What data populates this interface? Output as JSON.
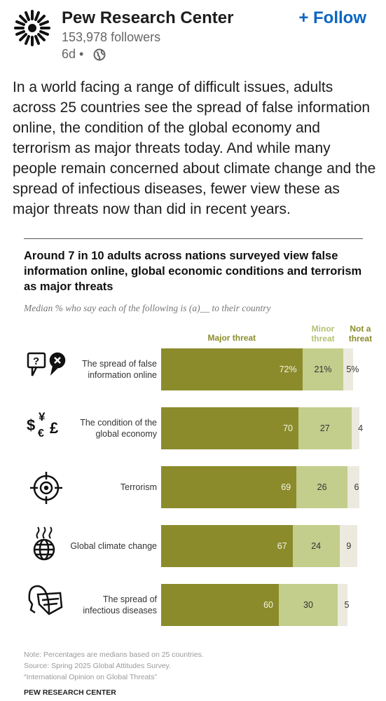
{
  "post": {
    "author": "Pew Research Center",
    "followers": "153,978 followers",
    "age": "6d •",
    "follow": "+ Follow",
    "text": "In a world facing a range of difficult issues, adults across 25 countries see the spread of false information online, the condition of the global economy and terrorism as major threats today. And while many people remain concerned about climate change and the spread of infectious diseases, fewer view these as major threats now than did in recent years."
  },
  "chart_data": {
    "type": "stacked-bar",
    "orientation": "horizontal",
    "title": "Around 7 in 10 adults across nations surveyed view false information online, global economic conditions and terrorism as major threats",
    "subtitle": "Median % who say each of the following is (a)__ to their country",
    "categories": [
      "The spread of false information online",
      "The condition of the global economy",
      "Terrorism",
      "Global climate change",
      "The spread of infectious diseases"
    ],
    "series": [
      {
        "name": "Major threat",
        "color": "#8b8b2c",
        "values": [
          72,
          70,
          69,
          67,
          60
        ],
        "value_labels": [
          "72%",
          "70",
          "69",
          "67",
          "60"
        ]
      },
      {
        "name": "Minor threat",
        "color": "#c3cd8c",
        "values": [
          21,
          27,
          26,
          24,
          30
        ],
        "value_labels": [
          "21%",
          "27",
          "26",
          "24",
          "30"
        ]
      },
      {
        "name": "Not a threat",
        "color": "#eceadf",
        "values": [
          5,
          4,
          6,
          9,
          5
        ],
        "value_labels": [
          "5%",
          "4",
          "6",
          "9",
          "5"
        ]
      }
    ],
    "xlim": [
      0,
      100
    ],
    "notes": [
      "Note: Percentages are medians based on 25 countries.",
      "Source: Spring 2025 Global Attitudes Survey.",
      "“International Opinion on Global Threats”"
    ],
    "source": "PEW RESEARCH CENTER"
  }
}
